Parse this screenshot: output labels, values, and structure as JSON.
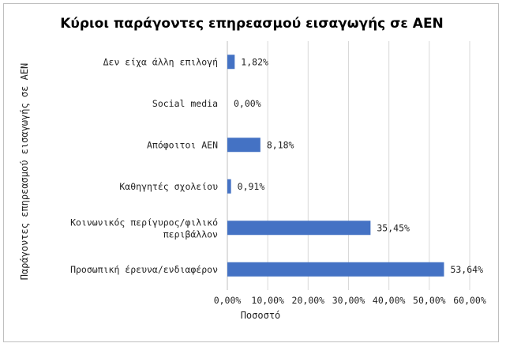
{
  "chart_data": {
    "type": "bar",
    "orientation": "horizontal",
    "title": "Κύριοι παράγοντες επηρεασμού εισαγωγής σε ΑΕΝ",
    "xlabel": "Ποσοστό",
    "ylabel": "Παράγοντες επηρεασμού εισαγωγής σε ΑΕΝ",
    "categories": [
      "Δεν είχα άλλη επιλογή",
      "Social media",
      "Απόφοιτοι ΑΕΝ",
      "Καθηγητές σχολείου",
      "Κοινωνικός περίγυρος/φιλικό περιβάλλον",
      "Προσωπική έρευνα/ενδιαφέρον"
    ],
    "values": [
      1.82,
      0.0,
      8.18,
      0.91,
      35.45,
      53.64
    ],
    "data_labels": [
      "1,82%",
      "0,00%",
      "8,18%",
      "0,91%",
      "35,45%",
      "53,64%"
    ],
    "xlim": [
      0,
      60
    ],
    "x_ticks": [
      0,
      10,
      20,
      30,
      40,
      50,
      60
    ],
    "x_tick_labels": [
      "0,00%",
      "10,00%",
      "20,00%",
      "30,00%",
      "40,00%",
      "50,00%",
      "60,00%"
    ],
    "grid": true,
    "legend": "none",
    "bar_color": "#4472c4"
  }
}
